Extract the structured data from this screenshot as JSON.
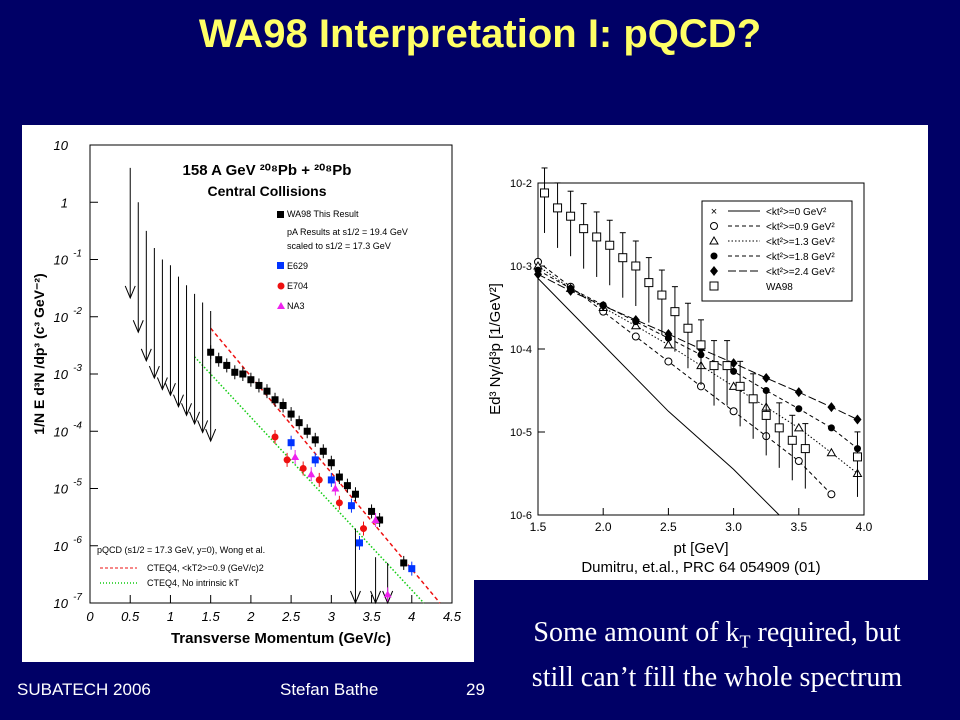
{
  "slide": {
    "title": "WA98 Interpretation I: pQCD?",
    "caption_line1": "Some amount of k",
    "caption_sub": "T",
    "caption_line1_rest": " required, but",
    "caption_line2": "still can’t fill the whole spectrum",
    "footer_left": "SUBATECH 2006",
    "footer_center": "Stefan Bathe",
    "footer_page": "29",
    "citation": "Dumitru, et.al., PRC 64 054909 (01)"
  },
  "chart_data": [
    {
      "type": "scatter",
      "log_y": true,
      "xlim": [
        0,
        4.5
      ],
      "ylim_exp": [
        -7,
        1
      ],
      "xlabel": "Transverse Momentum (GeV/c)",
      "ylabel": "1/N E d³N /dp³ (c³ GeV⁻²)",
      "x_ticks": [
        "0",
        "0.5",
        "1",
        "1.5",
        "2",
        "2.5",
        "3",
        "3.5",
        "4",
        "4.5"
      ],
      "y_ticks": [
        "10",
        "1",
        "10 -1",
        "10 -2",
        "10 -3",
        "10 -4",
        "10 -5",
        "10 -6",
        "10 -7"
      ],
      "title_lines": [
        "158 A GeV ²⁰⁸Pb + ²⁰⁸Pb",
        "Central Collisions"
      ],
      "legend": [
        "WA98 This Result",
        "pA Results at s1/2 = 19.4 GeV",
        "scaled to s1/2 = 17.3 GeV",
        "E629",
        "E704",
        "NA3"
      ],
      "theory_legend": [
        "pQCD  (s1/2 = 17.3 GeV, y=0), Wong et al.",
        "CTEQ4, <kT2>=0.9 (GeV/c)2",
        "CTEQ4, No intrinsic kT"
      ],
      "colors": {
        "wa98": "#000000",
        "e629": "#0033ff",
        "e704": "#ee1111",
        "na3": "#ee22ee",
        "cteq_kt": "#ee1111",
        "cteq_nokt": "#11cc11"
      },
      "series": [
        {
          "name": "WA98 This Result",
          "marker": "square",
          "points": [
            [
              1.5,
              -2.62
            ],
            [
              1.6,
              -2.75
            ],
            [
              1.7,
              -2.85
            ],
            [
              1.8,
              -2.97
            ],
            [
              1.9,
              -3.0
            ],
            [
              2.0,
              -3.1
            ],
            [
              2.1,
              -3.2
            ],
            [
              2.2,
              -3.3
            ],
            [
              2.3,
              -3.45
            ],
            [
              2.4,
              -3.55
            ],
            [
              2.5,
              -3.7
            ],
            [
              2.6,
              -3.85
            ],
            [
              2.7,
              -4.0
            ],
            [
              2.8,
              -4.15
            ],
            [
              2.9,
              -4.35
            ],
            [
              3.0,
              -4.55
            ],
            [
              3.1,
              -4.8
            ],
            [
              3.2,
              -4.95
            ],
            [
              3.3,
              -5.1
            ],
            [
              3.5,
              -5.4
            ],
            [
              3.6,
              -5.55
            ],
            [
              3.9,
              -6.3
            ]
          ]
        },
        {
          "name": "E629",
          "marker": "square",
          "points": [
            [
              2.5,
              -4.2
            ],
            [
              2.8,
              -4.5
            ],
            [
              3.0,
              -4.85
            ],
            [
              3.25,
              -5.3
            ],
            [
              3.35,
              -5.95
            ],
            [
              4.0,
              -6.4
            ]
          ]
        },
        {
          "name": "E704",
          "marker": "circle",
          "points": [
            [
              2.3,
              -4.1
            ],
            [
              2.45,
              -4.5
            ],
            [
              2.65,
              -4.65
            ],
            [
              2.85,
              -4.85
            ],
            [
              3.1,
              -5.25
            ],
            [
              3.4,
              -5.7
            ]
          ]
        },
        {
          "name": "NA3",
          "marker": "triangle",
          "points": [
            [
              2.55,
              -4.45
            ],
            [
              2.75,
              -4.75
            ],
            [
              3.05,
              -5.0
            ],
            [
              3.55,
              -5.55
            ],
            [
              3.7,
              -6.85
            ]
          ]
        }
      ],
      "upper_limits": [
        [
          0.5,
          0.6
        ],
        [
          0.6,
          0.0
        ],
        [
          0.7,
          -0.5
        ],
        [
          0.8,
          -0.8
        ],
        [
          0.9,
          -1.0
        ],
        [
          1.0,
          -1.1
        ],
        [
          1.1,
          -1.3
        ],
        [
          1.2,
          -1.45
        ],
        [
          1.3,
          -1.6
        ],
        [
          1.4,
          -1.75
        ],
        [
          1.5,
          -1.9
        ],
        [
          3.3,
          -5.7
        ],
        [
          3.55,
          -6.2
        ],
        [
          3.7,
          -6.3
        ]
      ],
      "curves": [
        {
          "name": "CTEQ4, <kT2>=0.9 (GeV/c)2",
          "style": "dashed",
          "points": [
            [
              1.5,
              -2.2
            ],
            [
              4.35,
              -7.0
            ]
          ]
        },
        {
          "name": "CTEQ4, No intrinsic kT",
          "style": "dotted",
          "points": [
            [
              1.3,
              -2.7
            ],
            [
              4.15,
              -7.0
            ]
          ]
        }
      ]
    },
    {
      "type": "line",
      "log_y": true,
      "xlim": [
        1.5,
        4.0
      ],
      "ylim_exp": [
        -6,
        -2
      ],
      "xlabel": "pt [GeV]",
      "ylabel": "Ed³ Nγ/d³p [1/GeV²]",
      "x_ticks": [
        "1.5",
        "2.0",
        "2.5",
        "3.0",
        "3.5",
        "4.0"
      ],
      "y_ticks": [
        "10-2",
        "10-3",
        "10-4",
        "10-5",
        "10-6"
      ],
      "legend": [
        "<kt²>=0 GeV²",
        "<kt²>=0.9 GeV²",
        "<kt²>=1.3 GeV²",
        "<kt²>=1.8 GeV²",
        "<kt²>=2.4 GeV²",
        "WA98"
      ],
      "series": [
        {
          "name": "<kt²>=0 GeV²",
          "marker": "cross",
          "style": "solid",
          "points": [
            [
              1.5,
              -3.15
            ],
            [
              2.0,
              -3.95
            ],
            [
              2.5,
              -4.75
            ],
            [
              3.0,
              -5.45
            ],
            [
              3.35,
              -6.0
            ]
          ]
        },
        {
          "name": "<kt²>=0.9 GeV²",
          "marker": "circle-open",
          "style": "dashed",
          "points": [
            [
              1.5,
              -2.95
            ],
            [
              1.75,
              -3.25
            ],
            [
              2.0,
              -3.55
            ],
            [
              2.25,
              -3.85
            ],
            [
              2.5,
              -4.15
            ],
            [
              2.75,
              -4.45
            ],
            [
              3.0,
              -4.75
            ],
            [
              3.25,
              -5.05
            ],
            [
              3.5,
              -5.35
            ],
            [
              3.75,
              -5.75
            ]
          ]
        },
        {
          "name": "<kt²>=1.3 GeV²",
          "marker": "triangle-open",
          "style": "dotted",
          "points": [
            [
              1.5,
              -3.0
            ],
            [
              1.75,
              -3.27
            ],
            [
              2.0,
              -3.5
            ],
            [
              2.25,
              -3.72
            ],
            [
              2.5,
              -3.95
            ],
            [
              2.75,
              -4.2
            ],
            [
              3.0,
              -4.45
            ],
            [
              3.25,
              -4.7
            ],
            [
              3.5,
              -4.95
            ],
            [
              3.75,
              -5.25
            ],
            [
              3.95,
              -5.5
            ]
          ]
        },
        {
          "name": "<kt²>=1.8 GeV²",
          "marker": "circle-filled",
          "style": "dashed",
          "points": [
            [
              1.5,
              -3.05
            ],
            [
              1.75,
              -3.27
            ],
            [
              2.0,
              -3.47
            ],
            [
              2.25,
              -3.67
            ],
            [
              2.5,
              -3.87
            ],
            [
              2.75,
              -4.07
            ],
            [
              3.0,
              -4.27
            ],
            [
              3.25,
              -4.5
            ],
            [
              3.5,
              -4.72
            ],
            [
              3.75,
              -4.95
            ],
            [
              3.95,
              -5.2
            ]
          ]
        },
        {
          "name": "<kt²>=2.4 GeV²",
          "marker": "diamond-filled",
          "style": "longdash",
          "points": [
            [
              1.5,
              -3.1
            ],
            [
              1.75,
              -3.3
            ],
            [
              2.0,
              -3.48
            ],
            [
              2.25,
              -3.65
            ],
            [
              2.5,
              -3.82
            ],
            [
              2.75,
              -4.0
            ],
            [
              3.0,
              -4.17
            ],
            [
              3.25,
              -4.35
            ],
            [
              3.5,
              -4.52
            ],
            [
              3.75,
              -4.7
            ],
            [
              3.95,
              -4.85
            ]
          ]
        },
        {
          "name": "WA98",
          "marker": "square-open",
          "points": [
            [
              1.55,
              -2.12
            ],
            [
              1.65,
              -2.3
            ],
            [
              1.75,
              -2.4
            ],
            [
              1.85,
              -2.55
            ],
            [
              1.95,
              -2.65
            ],
            [
              2.05,
              -2.75
            ],
            [
              2.15,
              -2.9
            ],
            [
              2.25,
              -3.0
            ],
            [
              2.35,
              -3.2
            ],
            [
              2.45,
              -3.35
            ],
            [
              2.55,
              -3.55
            ],
            [
              2.65,
              -3.75
            ],
            [
              2.75,
              -3.95
            ],
            [
              2.85,
              -4.2
            ],
            [
              2.95,
              -4.2
            ],
            [
              3.05,
              -4.45
            ],
            [
              3.15,
              -4.6
            ],
            [
              3.25,
              -4.8
            ],
            [
              3.35,
              -4.95
            ],
            [
              3.45,
              -5.1
            ],
            [
              3.55,
              -5.2
            ],
            [
              3.95,
              -5.3
            ]
          ]
        }
      ]
    }
  ]
}
